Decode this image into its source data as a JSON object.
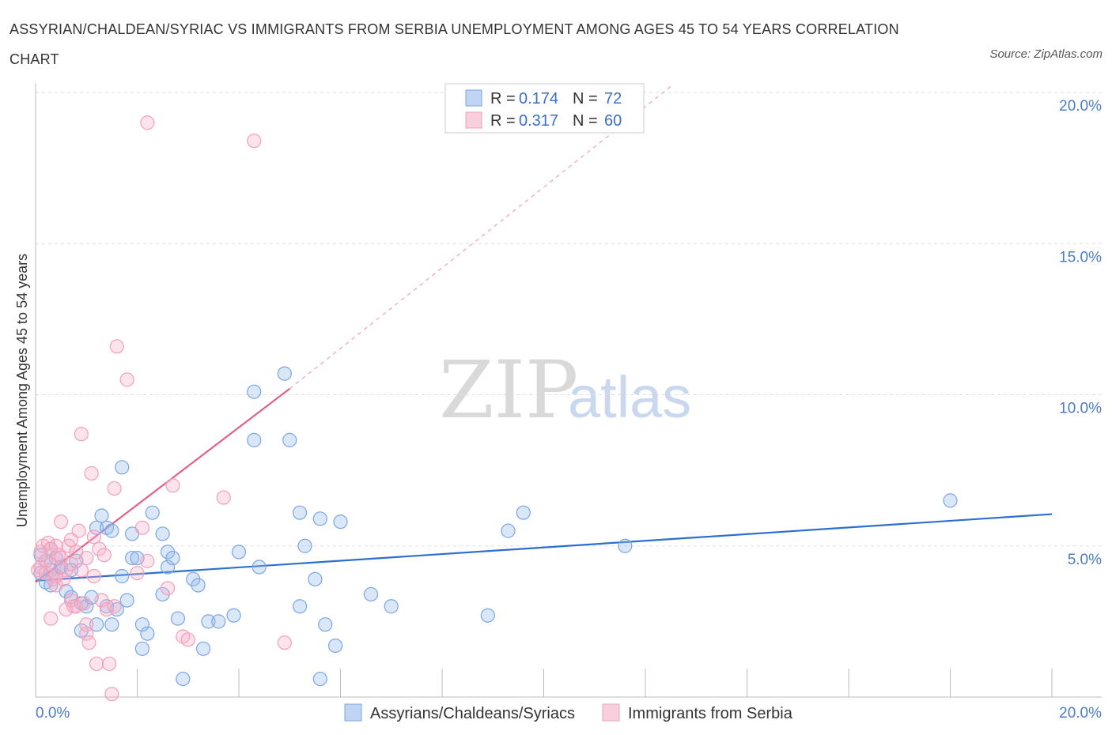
{
  "chart_data": {
    "type": "scatter",
    "title": "ASSYRIAN/CHALDEAN/SYRIAC VS IMMIGRANTS FROM SERBIA UNEMPLOYMENT AMONG AGES 45 TO 54 YEARS CORRELATION CHART",
    "source": "Source: ZipAtlas.com",
    "ylabel": "Unemployment Among Ages 45 to 54 years",
    "xlabel": "",
    "xlim": [
      0,
      20
    ],
    "ylim": [
      0,
      20
    ],
    "x_tick_labels": [
      "0.0%",
      "20.0%"
    ],
    "y_ticks": [
      5,
      10,
      15,
      20
    ],
    "y_tick_labels": [
      "5.0%",
      "10.0%",
      "15.0%",
      "20.0%"
    ],
    "grid": true,
    "watermark": {
      "zip": "ZIP",
      "atlas": "atlas"
    },
    "legend_box": {
      "rows": [
        {
          "r_label": "R =",
          "r_value": "0.174",
          "n_label": "N =",
          "n_value": "72"
        },
        {
          "r_label": "R =",
          "r_value": "0.317",
          "n_label": "N =",
          "n_value": "60"
        }
      ]
    },
    "series": [
      {
        "name": "Assyrians/Chaldeans/Syriacs",
        "color": "#7ba6e0",
        "fill": "rgba(150,185,235,0.35)",
        "trend_color": "#2b6fcf",
        "trend": {
          "x0": 0,
          "y0": 3.85,
          "x1": 20,
          "y1": 6.05
        },
        "points": [
          [
            0.1,
            4.7
          ],
          [
            0.1,
            4.1
          ],
          [
            0.2,
            3.8
          ],
          [
            0.2,
            4.5
          ],
          [
            0.3,
            4.9
          ],
          [
            0.3,
            4.2
          ],
          [
            0.3,
            3.7
          ],
          [
            0.4,
            4.0
          ],
          [
            0.4,
            4.6
          ],
          [
            0.5,
            4.3
          ],
          [
            0.5,
            4.3
          ],
          [
            0.6,
            3.5
          ],
          [
            0.7,
            4.2
          ],
          [
            0.7,
            3.3
          ],
          [
            0.8,
            4.5
          ],
          [
            0.9,
            2.2
          ],
          [
            0.9,
            3.1
          ],
          [
            1.0,
            3.0
          ],
          [
            1.1,
            3.3
          ],
          [
            1.2,
            5.6
          ],
          [
            1.2,
            2.4
          ],
          [
            1.3,
            6.0
          ],
          [
            1.4,
            5.6
          ],
          [
            1.4,
            3.0
          ],
          [
            1.5,
            5.5
          ],
          [
            1.5,
            2.4
          ],
          [
            1.6,
            2.9
          ],
          [
            1.7,
            4.0
          ],
          [
            1.7,
            7.6
          ],
          [
            1.8,
            3.2
          ],
          [
            1.9,
            4.6
          ],
          [
            1.9,
            5.4
          ],
          [
            2.0,
            4.6
          ],
          [
            2.1,
            1.6
          ],
          [
            2.1,
            2.4
          ],
          [
            2.2,
            2.1
          ],
          [
            2.3,
            6.1
          ],
          [
            2.5,
            5.4
          ],
          [
            2.5,
            3.4
          ],
          [
            2.6,
            4.8
          ],
          [
            2.6,
            4.3
          ],
          [
            2.7,
            4.6
          ],
          [
            2.8,
            2.6
          ],
          [
            2.9,
            0.6
          ],
          [
            3.1,
            3.9
          ],
          [
            3.2,
            3.7
          ],
          [
            3.3,
            1.6
          ],
          [
            3.4,
            2.5
          ],
          [
            3.6,
            2.5
          ],
          [
            3.9,
            2.7
          ],
          [
            4.0,
            4.8
          ],
          [
            4.3,
            8.5
          ],
          [
            4.3,
            10.1
          ],
          [
            4.4,
            4.3
          ],
          [
            4.9,
            10.7
          ],
          [
            5.0,
            8.5
          ],
          [
            5.2,
            3.0
          ],
          [
            5.2,
            6.1
          ],
          [
            5.3,
            5.0
          ],
          [
            5.5,
            3.9
          ],
          [
            5.6,
            5.9
          ],
          [
            5.6,
            0.6
          ],
          [
            5.7,
            2.4
          ],
          [
            5.9,
            1.7
          ],
          [
            6.0,
            5.8
          ],
          [
            6.6,
            3.4
          ],
          [
            7.0,
            3.0
          ],
          [
            8.9,
            2.7
          ],
          [
            9.3,
            5.5
          ],
          [
            9.6,
            6.1
          ],
          [
            11.6,
            5.0
          ],
          [
            18.0,
            6.5
          ]
        ]
      },
      {
        "name": "Immigrants from Serbia",
        "color": "#f0a0bb",
        "fill": "rgba(245,175,200,0.35)",
        "trend_color": "#e0608a",
        "trend": {
          "x0": 0,
          "y0": 3.8,
          "x1": 5.0,
          "y1": 10.2
        },
        "trend_dashed": {
          "x0": 5.0,
          "y0": 10.2,
          "x1": 12.5,
          "y1": 20.2
        },
        "points": [
          [
            0.05,
            4.2
          ],
          [
            0.1,
            4.8
          ],
          [
            0.1,
            4.3
          ],
          [
            0.15,
            5.0
          ],
          [
            0.2,
            4.5
          ],
          [
            0.2,
            4.1
          ],
          [
            0.25,
            5.1
          ],
          [
            0.3,
            4.4
          ],
          [
            0.3,
            4.9
          ],
          [
            0.3,
            2.6
          ],
          [
            0.35,
            3.9
          ],
          [
            0.4,
            4.0
          ],
          [
            0.4,
            5.0
          ],
          [
            0.4,
            3.7
          ],
          [
            0.45,
            4.7
          ],
          [
            0.5,
            5.8
          ],
          [
            0.5,
            4.6
          ],
          [
            0.55,
            3.9
          ],
          [
            0.6,
            4.2
          ],
          [
            0.6,
            2.9
          ],
          [
            0.65,
            5.0
          ],
          [
            0.7,
            3.2
          ],
          [
            0.7,
            4.4
          ],
          [
            0.7,
            5.2
          ],
          [
            0.75,
            3.0
          ],
          [
            0.8,
            4.8
          ],
          [
            0.8,
            3.0
          ],
          [
            0.85,
            5.5
          ],
          [
            0.9,
            4.2
          ],
          [
            0.9,
            8.7
          ],
          [
            0.95,
            3.1
          ],
          [
            1.0,
            4.6
          ],
          [
            1.0,
            2.1
          ],
          [
            1.0,
            2.4
          ],
          [
            1.05,
            1.8
          ],
          [
            1.1,
            7.4
          ],
          [
            1.15,
            5.3
          ],
          [
            1.15,
            4.0
          ],
          [
            1.2,
            1.1
          ],
          [
            1.25,
            4.9
          ],
          [
            1.3,
            3.2
          ],
          [
            1.35,
            4.7
          ],
          [
            1.4,
            2.9
          ],
          [
            1.45,
            1.1
          ],
          [
            1.5,
            0.1
          ],
          [
            1.55,
            3.0
          ],
          [
            1.55,
            6.9
          ],
          [
            1.6,
            11.6
          ],
          [
            1.8,
            10.5
          ],
          [
            2.0,
            4.1
          ],
          [
            2.1,
            5.6
          ],
          [
            2.2,
            4.5
          ],
          [
            2.2,
            19.0
          ],
          [
            2.6,
            3.6
          ],
          [
            2.7,
            7.0
          ],
          [
            2.9,
            2.0
          ],
          [
            3.0,
            1.9
          ],
          [
            3.7,
            6.6
          ],
          [
            4.3,
            18.4
          ],
          [
            4.9,
            1.8
          ]
        ]
      }
    ]
  }
}
